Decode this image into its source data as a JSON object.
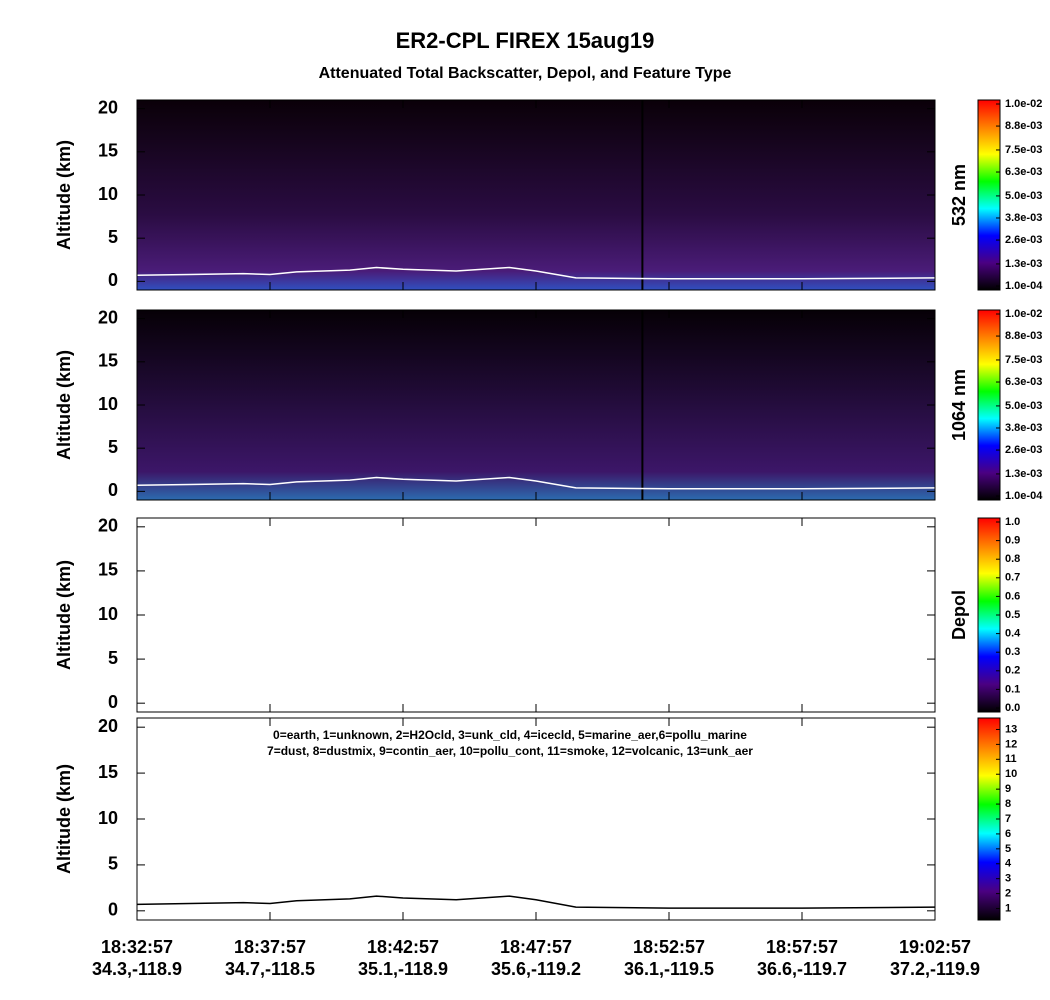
{
  "title": "ER2-CPL FIREX 15aug19",
  "subtitle": "Attenuated Total Backscatter, Depol, and Feature Type",
  "xlim": [
    0,
    30
  ],
  "xticks": [
    {
      "value": 0,
      "label": "18:32:57",
      "location": "34.3,-118.9"
    },
    {
      "value": 5,
      "label": "18:37:57",
      "location": "34.7,-118.5"
    },
    {
      "value": 10,
      "label": "18:42:57",
      "location": "35.1,-118.9"
    },
    {
      "value": 15,
      "label": "18:47:57",
      "location": "35.6,-119.2"
    },
    {
      "value": 20,
      "label": "18:52:57",
      "location": "36.1,-119.5"
    },
    {
      "value": 25,
      "label": "18:57:57",
      "location": "36.6,-119.7"
    },
    {
      "value": 30,
      "label": "19:02:57",
      "location": "37.2,-119.9"
    }
  ],
  "surface": {
    "x": [
      0,
      2,
      4,
      5,
      6,
      8,
      9,
      10,
      12,
      14,
      15,
      16.5,
      20,
      25,
      30
    ],
    "values": [
      0.7,
      0.8,
      0.9,
      0.8,
      1.1,
      1.3,
      1.6,
      1.4,
      1.2,
      1.6,
      1.2,
      0.4,
      0.3,
      0.3,
      0.4
    ]
  },
  "chart_data": [
    {
      "type": "heatmap",
      "ylabel": "Altitude (km)",
      "ylim": [
        -1,
        21
      ],
      "yticks": [
        0,
        5,
        10,
        15,
        20
      ],
      "surface_color": "#ffffff",
      "colorbar": {
        "label": "532 nm",
        "clim": [
          0.0001,
          0.01
        ],
        "colors": [
          "#000000",
          "#4b0082",
          "#0000ff",
          "#00ffff",
          "#00ff00",
          "#ffff00",
          "#ff8000",
          "#ff0000"
        ],
        "ticks": [
          {
            "value": 0.0001,
            "label": "1.0e-04"
          },
          {
            "value": 0.0013,
            "label": "1.3e-03"
          },
          {
            "value": 0.0026,
            "label": "2.6e-03"
          },
          {
            "value": 0.0038,
            "label": "3.8e-03"
          },
          {
            "value": 0.005,
            "label": "5.0e-03"
          },
          {
            "value": 0.0063,
            "label": "6.3e-03"
          },
          {
            "value": 0.0075,
            "label": "7.5e-03"
          },
          {
            "value": 0.0088,
            "label": "8.8e-03"
          },
          {
            "value": 0.01,
            "label": "1.0e-02"
          }
        ]
      }
    },
    {
      "type": "heatmap",
      "ylabel": "Altitude (km)",
      "ylim": [
        -1,
        21
      ],
      "yticks": [
        0,
        5,
        10,
        15,
        20
      ],
      "surface_color": "#ffffff",
      "colorbar": {
        "label": "1064 nm",
        "clim": [
          0.0001,
          0.01
        ],
        "colors": [
          "#000000",
          "#4b0082",
          "#0000ff",
          "#00ffff",
          "#00ff00",
          "#ffff00",
          "#ff8000",
          "#ff0000"
        ],
        "ticks": [
          {
            "value": 0.0001,
            "label": "1.0e-04"
          },
          {
            "value": 0.0013,
            "label": "1.3e-03"
          },
          {
            "value": 0.0026,
            "label": "2.6e-03"
          },
          {
            "value": 0.0038,
            "label": "3.8e-03"
          },
          {
            "value": 0.005,
            "label": "5.0e-03"
          },
          {
            "value": 0.0063,
            "label": "6.3e-03"
          },
          {
            "value": 0.0075,
            "label": "7.5e-03"
          },
          {
            "value": 0.0088,
            "label": "8.8e-03"
          },
          {
            "value": 0.01,
            "label": "1.0e-02"
          }
        ]
      }
    },
    {
      "type": "heatmap",
      "ylabel": "Altitude (km)",
      "ylim": [
        -1,
        21
      ],
      "yticks": [
        0,
        5,
        10,
        15,
        20
      ],
      "colorbar": {
        "label": "Depol",
        "clim": [
          0,
          1
        ],
        "colors": [
          "#000000",
          "#4b0082",
          "#0000ff",
          "#00ffff",
          "#00ff00",
          "#ffff00",
          "#ff8000",
          "#ff0000"
        ],
        "ticks": [
          {
            "value": 0,
            "label": "0.0"
          },
          {
            "value": 0.1,
            "label": "0.1"
          },
          {
            "value": 0.2,
            "label": "0.2"
          },
          {
            "value": 0.3,
            "label": "0.3"
          },
          {
            "value": 0.4,
            "label": "0.4"
          },
          {
            "value": 0.5,
            "label": "0.5"
          },
          {
            "value": 0.6,
            "label": "0.6"
          },
          {
            "value": 0.7,
            "label": "0.7"
          },
          {
            "value": 0.8,
            "label": "0.8"
          },
          {
            "value": 0.9,
            "label": "0.9"
          },
          {
            "value": 1,
            "label": "1.0"
          }
        ]
      }
    },
    {
      "type": "heatmap",
      "ylabel": "Altitude (km)",
      "ylim": [
        -1,
        21
      ],
      "yticks": [
        0,
        5,
        10,
        15,
        20
      ],
      "surface_color": "#000000",
      "annotations": [
        "0=earth, 1=unknown, 2=H2Ocld, 3=unk_cld, 4=icecld, 5=marine_aer,6=pollu_marine",
        "7=dust, 8=dustmix, 9=contin_aer, 10=pollu_cont, 11=smoke, 12=volcanic, 13=unk_aer"
      ],
      "colorbar": {
        "clim": [
          0.5,
          13.5
        ],
        "colors": [
          "#000000",
          "#4b0082",
          "#0000ff",
          "#00ffff",
          "#00ff00",
          "#ffff00",
          "#ff8000",
          "#ff0000"
        ],
        "ticks": [
          1,
          2,
          3,
          4,
          5,
          6,
          7,
          8,
          9,
          10,
          11,
          12,
          13
        ]
      }
    }
  ]
}
